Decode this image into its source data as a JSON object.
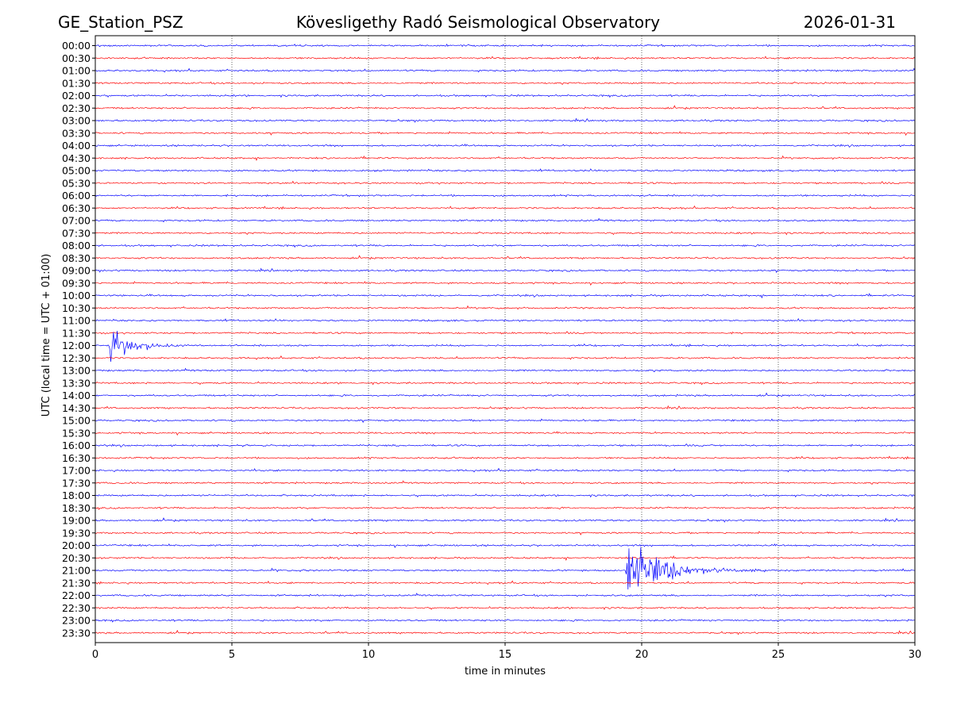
{
  "header": {
    "station": "GE_Station_PSZ",
    "observatory": "Kövesligethy Radó Seismological Observatory",
    "date": "2026-01-31"
  },
  "chart_data": {
    "type": "line",
    "subtype": "helicorder",
    "xlabel": "time in minutes",
    "ylabel": "UTC (local time = UTC + 01:00)",
    "xlim": [
      0,
      30
    ],
    "xticks": [
      0,
      5,
      10,
      15,
      20,
      25,
      30
    ],
    "grid": "vertical dotted lines at x = 5, 10, 15, 20, 25",
    "row_labels": [
      "00:00",
      "00:30",
      "01:00",
      "01:30",
      "02:00",
      "02:30",
      "03:00",
      "03:30",
      "04:00",
      "04:30",
      "05:00",
      "05:30",
      "06:00",
      "06:30",
      "07:00",
      "07:30",
      "08:00",
      "08:30",
      "09:00",
      "09:30",
      "10:00",
      "10:30",
      "11:00",
      "11:30",
      "12:00",
      "12:30",
      "13:00",
      "13:30",
      "14:00",
      "14:30",
      "15:00",
      "15:30",
      "16:00",
      "16:30",
      "17:00",
      "17:30",
      "18:00",
      "18:30",
      "19:00",
      "19:30",
      "20:00",
      "20:30",
      "21:00",
      "21:30",
      "22:00",
      "22:30",
      "23:00",
      "23:30"
    ],
    "trace_colors": [
      "#0000ff",
      "#ff0000"
    ],
    "events": [
      {
        "row": "12:00",
        "onset_min": 0.45,
        "duration_min": 4.5,
        "peak_amplitude_rows": 1.7
      },
      {
        "row": "21:00",
        "onset_min": 19.4,
        "duration_min": 8.5,
        "peak_amplitude_rows": 2.1
      },
      {
        "row": "21:00",
        "onset_min": 6.5,
        "duration_min": 1.8,
        "peak_amplitude_rows": 0.25
      },
      {
        "row": "16:00",
        "onset_min": 5.2,
        "duration_min": 1.0,
        "peak_amplitude_rows": 0.2
      }
    ]
  }
}
